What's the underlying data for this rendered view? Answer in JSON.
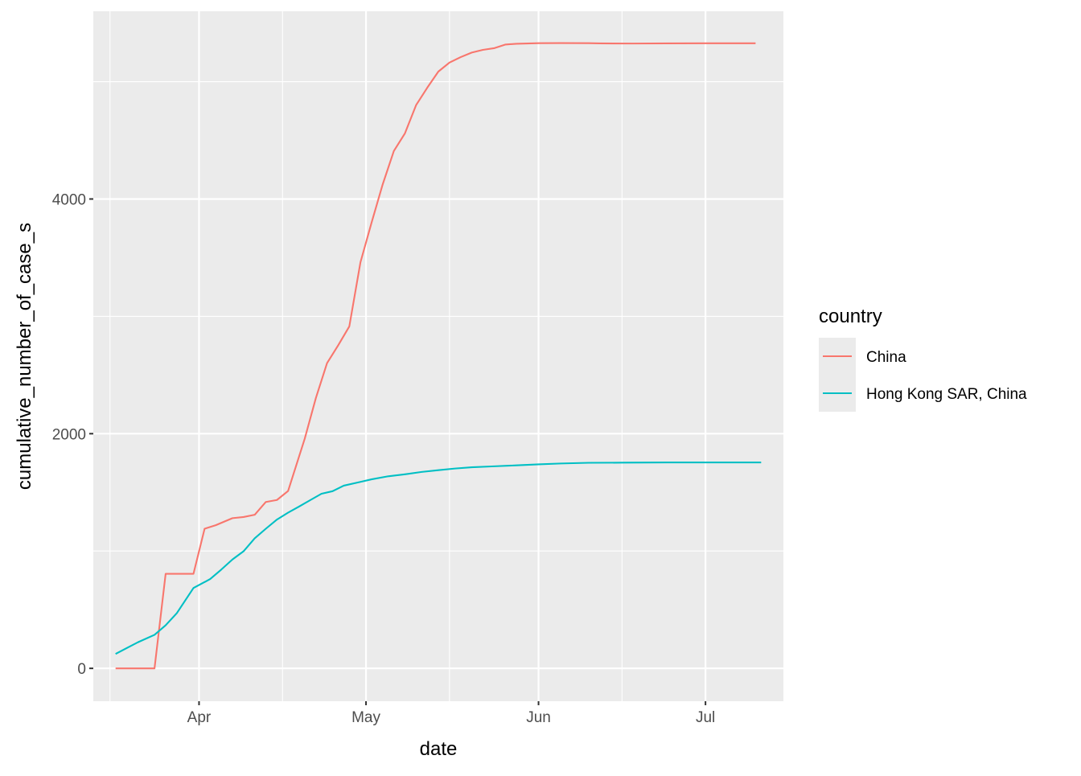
{
  "chart_data": {
    "type": "line",
    "xlabel": "date",
    "ylabel": "cumulative_number_of_case_s",
    "x_range": [
      "2003-03-13",
      "2003-07-15"
    ],
    "ylim": [
      -280,
      5600
    ],
    "x_ticks": [
      {
        "label": "Apr",
        "date": "2003-04-01"
      },
      {
        "label": "May",
        "date": "2003-05-01"
      },
      {
        "label": "Jun",
        "date": "2003-06-01"
      },
      {
        "label": "Jul",
        "date": "2003-07-01"
      }
    ],
    "x_minor_dates": [
      "2003-03-16",
      "2003-04-16",
      "2003-05-16",
      "2003-06-16"
    ],
    "y_ticks": [
      0,
      2000,
      4000
    ],
    "y_minor": [
      1000,
      3000,
      5000
    ],
    "grid": true,
    "background": "#ebebeb",
    "legend": {
      "title": "country",
      "position": "right",
      "entries": [
        {
          "label": "China",
          "color": "#F8766D"
        },
        {
          "label": "Hong Kong SAR, China",
          "color": "#00BFC4"
        }
      ]
    },
    "series": [
      {
        "name": "China",
        "color": "#F8766D",
        "points": [
          [
            "2003-03-17",
            0
          ],
          [
            "2003-03-24",
            0
          ],
          [
            "2003-03-26",
            806
          ],
          [
            "2003-03-31",
            806
          ],
          [
            "2003-04-02",
            1190
          ],
          [
            "2003-04-04",
            1220
          ],
          [
            "2003-04-07",
            1280
          ],
          [
            "2003-04-09",
            1290
          ],
          [
            "2003-04-11",
            1309
          ],
          [
            "2003-04-13",
            1418
          ],
          [
            "2003-04-15",
            1435
          ],
          [
            "2003-04-17",
            1512
          ],
          [
            "2003-04-20",
            1959
          ],
          [
            "2003-04-22",
            2305
          ],
          [
            "2003-04-24",
            2601
          ],
          [
            "2003-04-26",
            2753
          ],
          [
            "2003-04-28",
            2914
          ],
          [
            "2003-04-30",
            3460
          ],
          [
            "2003-05-02",
            3799
          ],
          [
            "2003-05-04",
            4125
          ],
          [
            "2003-05-06",
            4409
          ],
          [
            "2003-05-08",
            4560
          ],
          [
            "2003-05-10",
            4800
          ],
          [
            "2003-05-12",
            4948
          ],
          [
            "2003-05-14",
            5086
          ],
          [
            "2003-05-16",
            5163
          ],
          [
            "2003-05-18",
            5209
          ],
          [
            "2003-05-20",
            5248
          ],
          [
            "2003-05-22",
            5271
          ],
          [
            "2003-05-24",
            5285
          ],
          [
            "2003-05-26",
            5316
          ],
          [
            "2003-05-28",
            5323
          ],
          [
            "2003-06-01",
            5328
          ],
          [
            "2003-06-05",
            5329
          ],
          [
            "2003-06-10",
            5328
          ],
          [
            "2003-06-12",
            5326
          ],
          [
            "2003-06-18",
            5325
          ],
          [
            "2003-06-24",
            5326
          ],
          [
            "2003-07-01",
            5327
          ],
          [
            "2003-07-10",
            5327
          ]
        ]
      },
      {
        "name": "Hong Kong SAR, China",
        "color": "#00BFC4",
        "points": [
          [
            "2003-03-17",
            123
          ],
          [
            "2003-03-19",
            173
          ],
          [
            "2003-03-21",
            222
          ],
          [
            "2003-03-24",
            286
          ],
          [
            "2003-03-26",
            367
          ],
          [
            "2003-03-28",
            470
          ],
          [
            "2003-03-31",
            685
          ],
          [
            "2003-04-03",
            761
          ],
          [
            "2003-04-05",
            842
          ],
          [
            "2003-04-07",
            928
          ],
          [
            "2003-04-09",
            998
          ],
          [
            "2003-04-11",
            1108
          ],
          [
            "2003-04-13",
            1190
          ],
          [
            "2003-04-15",
            1268
          ],
          [
            "2003-04-17",
            1327
          ],
          [
            "2003-04-19",
            1380
          ],
          [
            "2003-04-21",
            1434
          ],
          [
            "2003-04-23",
            1488
          ],
          [
            "2003-04-25",
            1510
          ],
          [
            "2003-04-27",
            1557
          ],
          [
            "2003-04-30",
            1589
          ],
          [
            "2003-05-02",
            1611
          ],
          [
            "2003-05-05",
            1637
          ],
          [
            "2003-05-08",
            1654
          ],
          [
            "2003-05-11",
            1674
          ],
          [
            "2003-05-14",
            1689
          ],
          [
            "2003-05-17",
            1703
          ],
          [
            "2003-05-20",
            1714
          ],
          [
            "2003-05-24",
            1722
          ],
          [
            "2003-05-28",
            1730
          ],
          [
            "2003-06-01",
            1739
          ],
          [
            "2003-06-05",
            1746
          ],
          [
            "2003-06-10",
            1752
          ],
          [
            "2003-06-16",
            1753
          ],
          [
            "2003-06-24",
            1755
          ],
          [
            "2003-07-01",
            1755
          ],
          [
            "2003-07-11",
            1755
          ]
        ]
      }
    ]
  }
}
